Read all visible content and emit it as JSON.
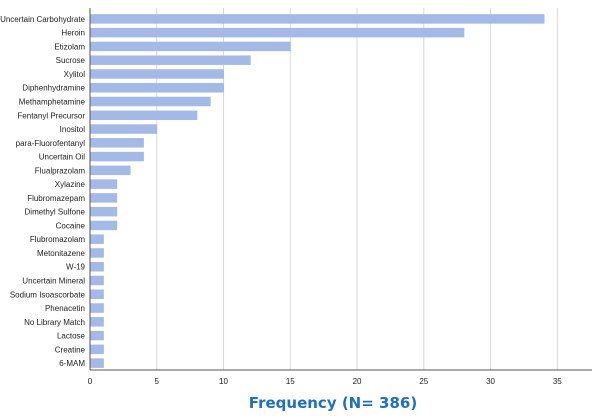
{
  "chart_data": {
    "type": "bar",
    "orientation": "horizontal",
    "categories": [
      "Uncertain Carbohydrate",
      "Heroin",
      "Etizolam",
      "Sucrose",
      "Xylitol",
      "Diphenhydramine",
      "Methamphetamine",
      "Fentanyl Precursor",
      "Inositol",
      "para-Fluorofentanyl",
      "Uncertain Oil",
      "Flualprazolam",
      "Xylazine",
      "Flubromazepam",
      "Dimethyl Sulfone",
      "Cocaine",
      "Flubromazolam",
      "Metonitazene",
      "W-19",
      "Uncertain Mineral",
      "Sodium Isoascorbate",
      "Phenacetin",
      "No Library Match",
      "Lactose",
      "Creatine",
      "6-MAM"
    ],
    "values": [
      34,
      28,
      15,
      12,
      10,
      10,
      9,
      8,
      5,
      4,
      4,
      3,
      2,
      2,
      2,
      2,
      1,
      1,
      1,
      1,
      1,
      1,
      1,
      1,
      1,
      1
    ],
    "xlim": [
      0,
      37
    ],
    "xticks": [
      0,
      5,
      10,
      15,
      20,
      25,
      30,
      35
    ],
    "xlabel": "Frequency (N= 386)",
    "ylabel": "",
    "title": "",
    "grid": "vertical",
    "legend": "none",
    "colors": {
      "bar": "#a4b9e6",
      "grid": "#d9d9d9",
      "axis": "#555555",
      "xlabel": "#1f6fc2"
    }
  }
}
